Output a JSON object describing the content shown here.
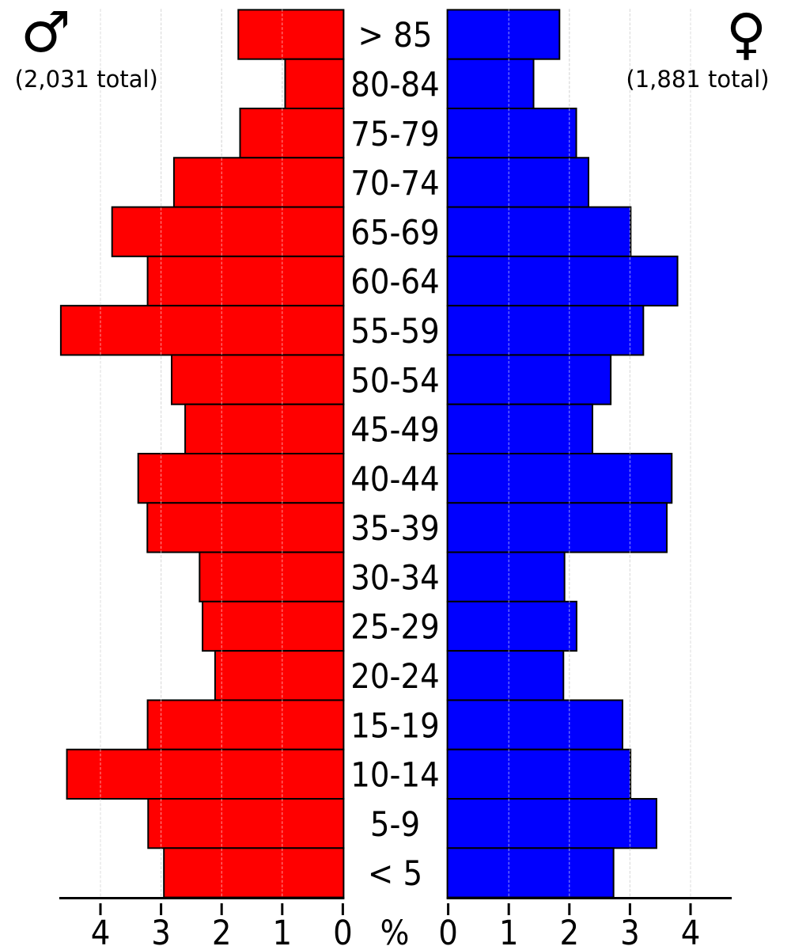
{
  "chart_data": {
    "type": "bar",
    "variant": "population-pyramid",
    "orientation": "horizontal",
    "categories": [
      "> 85",
      "80-84",
      "75-79",
      "70-74",
      "65-69",
      "60-64",
      "55-59",
      "50-54",
      "45-49",
      "40-44",
      "35-39",
      "30-34",
      "25-29",
      "20-24",
      "15-19",
      "10-14",
      "5-9",
      "< 5"
    ],
    "series": [
      {
        "name": "male",
        "symbol": "♂",
        "total_label": "(2,031 total)",
        "side": "left",
        "color": "#ff0000",
        "values_percent": [
          1.738,
          0.965,
          1.709,
          2.8,
          3.821,
          3.235,
          4.667,
          2.838,
          2.615,
          3.39,
          3.239,
          2.377,
          2.328,
          2.121,
          3.235,
          4.567,
          3.226,
          2.966
        ]
      },
      {
        "name": "female",
        "symbol": "♀",
        "total_label": "(1,881 total)",
        "side": "right",
        "color": "#0000ff",
        "values_percent": [
          1.85,
          1.422,
          2.127,
          2.329,
          3.025,
          3.798,
          3.234,
          2.696,
          2.394,
          3.703,
          3.621,
          1.933,
          2.132,
          1.915,
          2.89,
          3.022,
          3.451,
          2.742
        ]
      }
    ],
    "xlabel": "%",
    "x_ticks": [
      0,
      1,
      2,
      3,
      4
    ],
    "xlim_each_side": [
      0,
      4.68
    ],
    "grid": true,
    "legend_position": "none",
    "colors": {
      "bar_outline": "#000000",
      "axis": "#000000",
      "gridline_under": "#aaaaaa",
      "gridline_over_bars": "#ffffff",
      "background": "#ffffff",
      "text": "#000000"
    }
  }
}
